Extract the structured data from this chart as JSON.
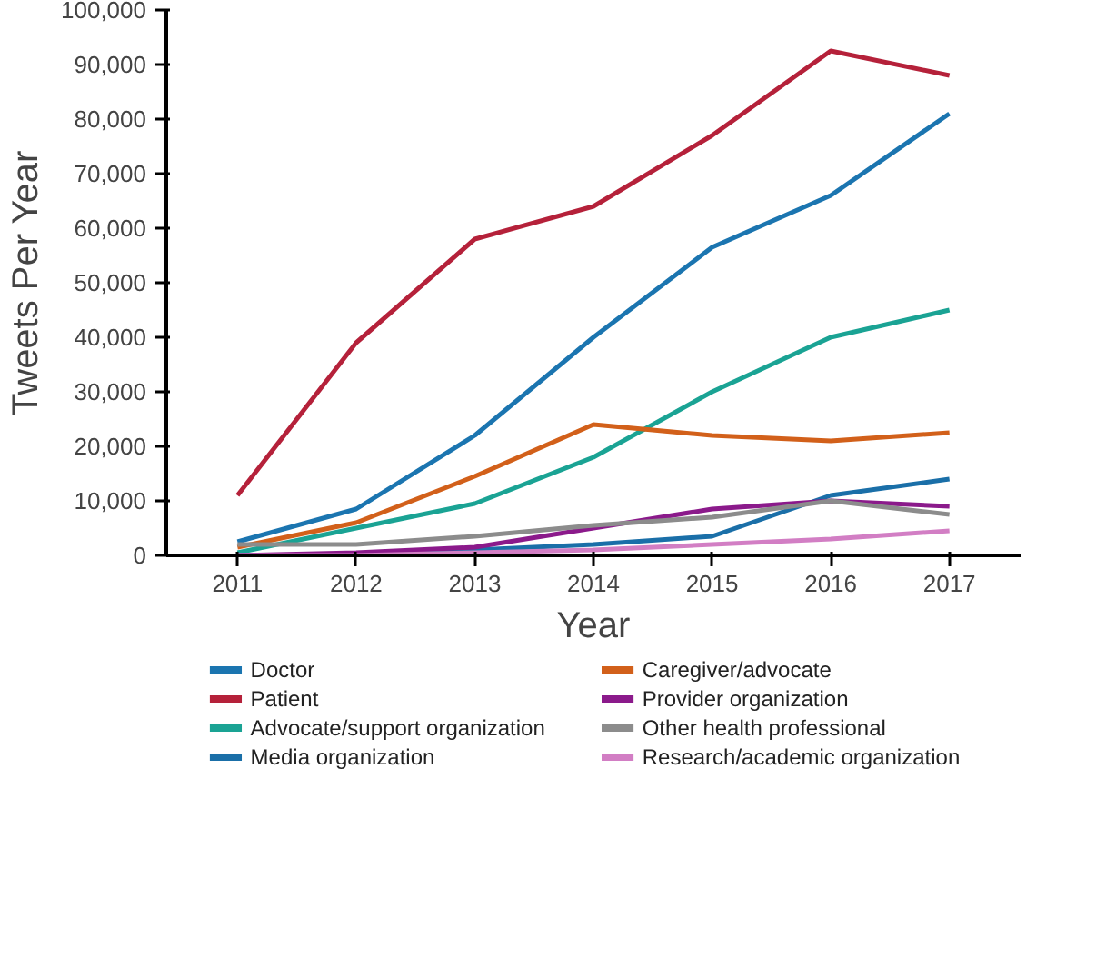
{
  "chart_data": {
    "type": "line",
    "xlabel": "Year",
    "ylabel": "Tweets Per Year",
    "x": [
      2011,
      2012,
      2013,
      2014,
      2015,
      2016,
      2017
    ],
    "xlim": [
      2010.4,
      2017.6
    ],
    "xticks": [
      2011,
      2012,
      2013,
      2014,
      2015,
      2016,
      2017
    ],
    "ylim": [
      0,
      100000
    ],
    "yticks": [
      0,
      {
        "value": 10000,
        "label": "10,000"
      },
      {
        "value": 20000,
        "label": "20,000"
      },
      {
        "value": 30000,
        "label": "30,000"
      },
      {
        "value": 40000,
        "label": "40,000"
      },
      {
        "value": 50000,
        "label": "50,000"
      },
      {
        "value": 60000,
        "label": "60,000"
      },
      {
        "value": 70000,
        "label": "70,000"
      },
      {
        "value": 80000,
        "label": "80,000"
      },
      {
        "value": 90000,
        "label": "90,000"
      },
      {
        "value": 100000,
        "label": "100,000"
      }
    ],
    "grid": false,
    "legend": "bottom",
    "marker": "none",
    "line_style": "solid",
    "series": [
      {
        "name": "Doctor",
        "color": "#1b75b0",
        "values": [
          2500,
          8500,
          22000,
          40000,
          56500,
          66000,
          81000
        ]
      },
      {
        "name": "Patient",
        "color": "#b5213a",
        "values": [
          11000,
          39000,
          58000,
          64000,
          77000,
          92500,
          88000
        ]
      },
      {
        "name": "Advocate/support organization",
        "color": "#1aa394",
        "values": [
          500,
          5000,
          9500,
          18000,
          30000,
          40000,
          45000
        ]
      },
      {
        "name": "Media organization",
        "color": "#1a6fa8",
        "values": [
          0,
          0,
          1000,
          2000,
          3500,
          11000,
          14000
        ]
      },
      {
        "name": "Caregiver/advocate",
        "color": "#d2601a",
        "values": [
          1500,
          6000,
          14500,
          24000,
          22000,
          21000,
          22500
        ]
      },
      {
        "name": "Provider organization",
        "color": "#8b1a8b",
        "values": [
          0,
          500,
          1500,
          5000,
          8500,
          10000,
          9000
        ]
      },
      {
        "name": "Other health professional",
        "color": "#8c8c8c",
        "values": [
          2000,
          2000,
          3500,
          5500,
          7000,
          10000,
          7500
        ]
      },
      {
        "name": "Research/academic organization",
        "color": "#d27ec4",
        "values": [
          0,
          0,
          500,
          1000,
          2000,
          3000,
          4500
        ]
      }
    ]
  }
}
